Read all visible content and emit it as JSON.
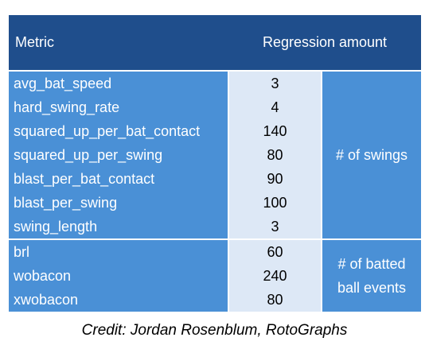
{
  "header": {
    "metric": "Metric",
    "regression": "Regression amount"
  },
  "groups": [
    {
      "unit": "# of swings",
      "rows": [
        {
          "metric": "avg_bat_speed",
          "value": "3"
        },
        {
          "metric": "hard_swing_rate",
          "value": "4"
        },
        {
          "metric": "squared_up_per_bat_contact",
          "value": "140"
        },
        {
          "metric": "squared_up_per_swing",
          "value": "80"
        },
        {
          "metric": "blast_per_bat_contact",
          "value": "90"
        },
        {
          "metric": "blast_per_swing",
          "value": "100"
        },
        {
          "metric": "swing_length",
          "value": "3"
        }
      ]
    },
    {
      "unit": "# of batted ball events",
      "rows": [
        {
          "metric": "brl",
          "value": "60"
        },
        {
          "metric": "wobacon",
          "value": "240"
        },
        {
          "metric": "xwobacon",
          "value": "80"
        }
      ]
    }
  ],
  "credit": "Credit: Jordan Rosenblum, RotoGraphs"
}
